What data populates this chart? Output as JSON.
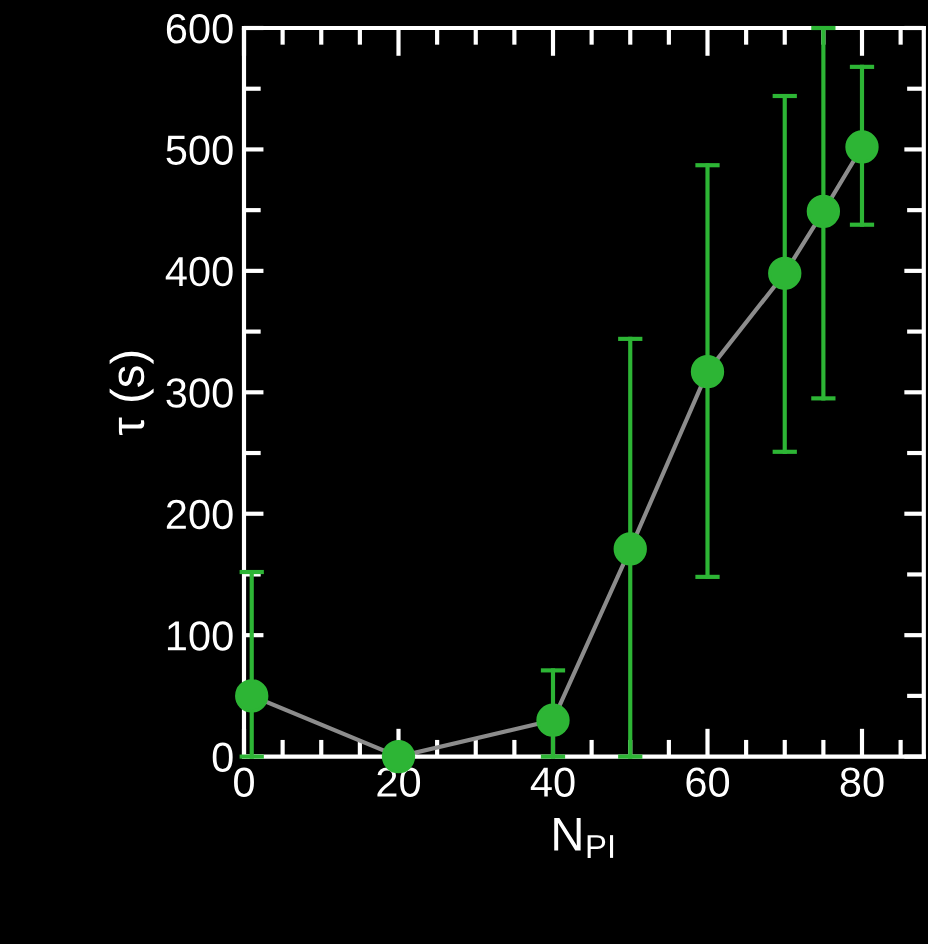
{
  "chart_data": {
    "type": "line",
    "xlabel": "N$_{PI}$",
    "ylabel": "τ (s)",
    "x": [
      1,
      20,
      40,
      50,
      60,
      70,
      75,
      80
    ],
    "series": [
      {
        "color": "#2db535",
        "values": [
          50,
          0,
          30,
          171,
          317,
          398,
          449,
          502
        ],
        "errors": [
          [
            0,
            152
          ],
          null,
          [
            0,
            71
          ],
          [
            0,
            344
          ],
          [
            148,
            487
          ],
          [
            251,
            544
          ],
          [
            295,
            600
          ],
          [
            438,
            568
          ]
        ]
      }
    ],
    "xlim": [
      0,
      88
    ],
    "ylim": [
      0,
      600
    ],
    "xticks": [
      0,
      20,
      40,
      60,
      80
    ],
    "yticks": [
      0,
      100,
      200,
      300,
      400,
      500,
      600
    ],
    "marker": "circle",
    "line_style": "solid",
    "grid": false,
    "legend": false
  }
}
